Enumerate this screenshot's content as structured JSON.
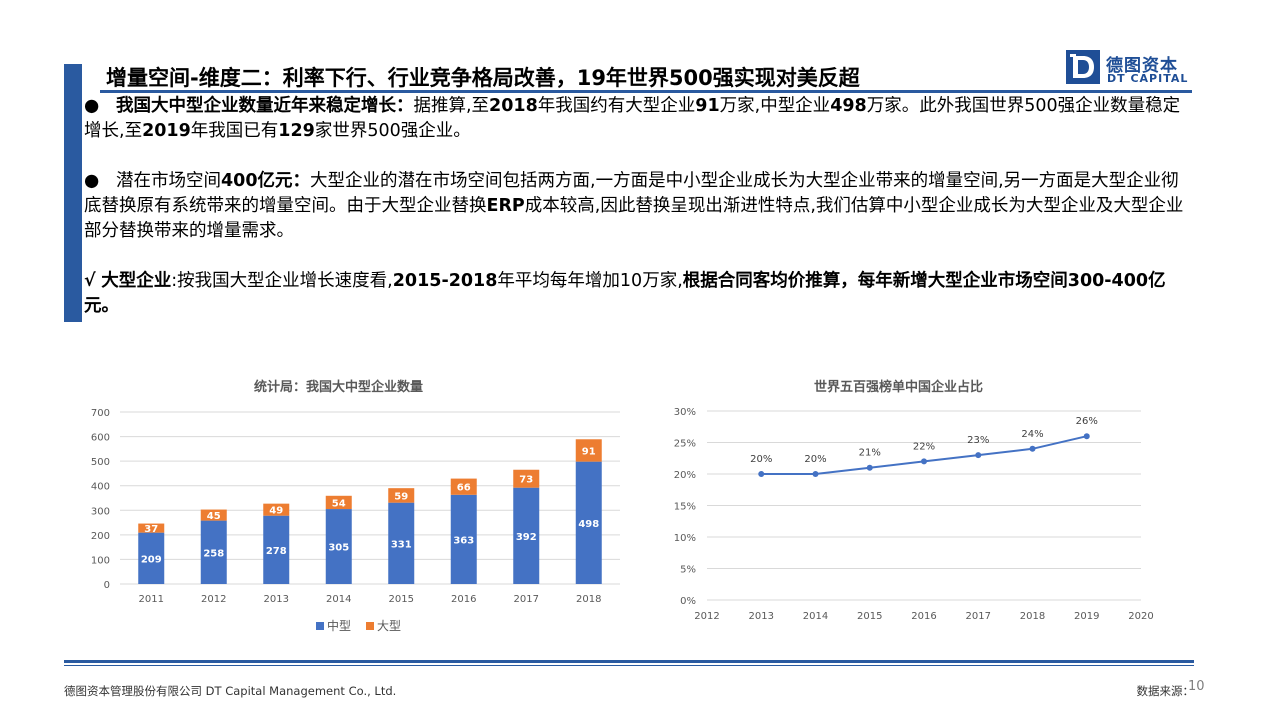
{
  "header": {
    "title": "增量空间-维度二：利率下行、行业竞争格局改善，19年世界500强实现对美反超",
    "logo_cn": "德图资本",
    "logo_en": "DT CAPITAL",
    "accent": "#2a5aa0"
  },
  "body": {
    "p1": {
      "bullet": "●",
      "lead": "我国大中型企业数量近年来稳定增长：",
      "t1": "据推算,至",
      "b1": "2018",
      "t2": "年我国约有大型企业",
      "b2": "91",
      "t3": "万家,中型企业",
      "b3": "498",
      "t4": "万家。此外我国世界500强企业数量稳定增长,至",
      "b4": "2019",
      "t5": "年我国已有",
      "b5": "129",
      "t6": "家世界500强企业。"
    },
    "p2": {
      "bullet": "●",
      "t1": "潜在市场空间",
      "b1": "400亿元：",
      "t2": "大型企业的潜在市场空间包括两方面,一方面是中小型企业成长为大型企业带来的增量空间,另一方面是大型企业彻底替换原有系统带来的增量空间。由于大型企业替换",
      "b2": "ERP",
      "t3": "成本较高,因此替换呈现出渐进性特点,我们估算中小型企业成长为大型企业及大型企业部分替换带来的增量需求。"
    },
    "p3": {
      "check": "√",
      "b1": "大型企业",
      "t1": ":按我国大型企业增长速度看,",
      "b2": "2015-2018",
      "t2": "年平均每年增加10万家,",
      "b3": "根据合同客均价推算，每年新增大型企业市场空间300-400亿元。"
    }
  },
  "chart_data": [
    {
      "type": "bar",
      "stacked": true,
      "title": "统计局：我国大中型企业数量",
      "categories": [
        "2011",
        "2012",
        "2013",
        "2014",
        "2015",
        "2016",
        "2017",
        "2018"
      ],
      "series": [
        {
          "name": "中型",
          "values": [
            209,
            258,
            278,
            305,
            331,
            363,
            392,
            498
          ],
          "color": "#4472c4"
        },
        {
          "name": "大型",
          "values": [
            37,
            45,
            49,
            54,
            59,
            66,
            73,
            91
          ],
          "color": "#ed7d31"
        }
      ],
      "ylim": [
        0,
        700
      ],
      "yticks": [
        0,
        100,
        200,
        300,
        400,
        500,
        600,
        700
      ],
      "grid": true,
      "legend": "bottom"
    },
    {
      "type": "line",
      "title": "世界五百强榜单中国企业占比",
      "x": [
        2013,
        2014,
        2015,
        2016,
        2017,
        2018,
        2019
      ],
      "xticks": [
        "2012",
        "2013",
        "2014",
        "2015",
        "2016",
        "2017",
        "2018",
        "2019",
        "2020"
      ],
      "series": [
        {
          "values": [
            20,
            20,
            21,
            22,
            23,
            24,
            26
          ],
          "labels": [
            "20%",
            "20%",
            "21%",
            "22%",
            "23%",
            "24%",
            "26%"
          ],
          "color": "#4472c4"
        }
      ],
      "xlim": [
        2012,
        2020
      ],
      "ylim": [
        0,
        30
      ],
      "yticks": [
        "0%",
        "5%",
        "10%",
        "15%",
        "20%",
        "25%",
        "30%"
      ],
      "grid": true
    }
  ],
  "footer": {
    "company": "德图资本管理股份有限公司 DT Capital Management Co., Ltd.",
    "source": "数据来源：",
    "page": "10"
  }
}
